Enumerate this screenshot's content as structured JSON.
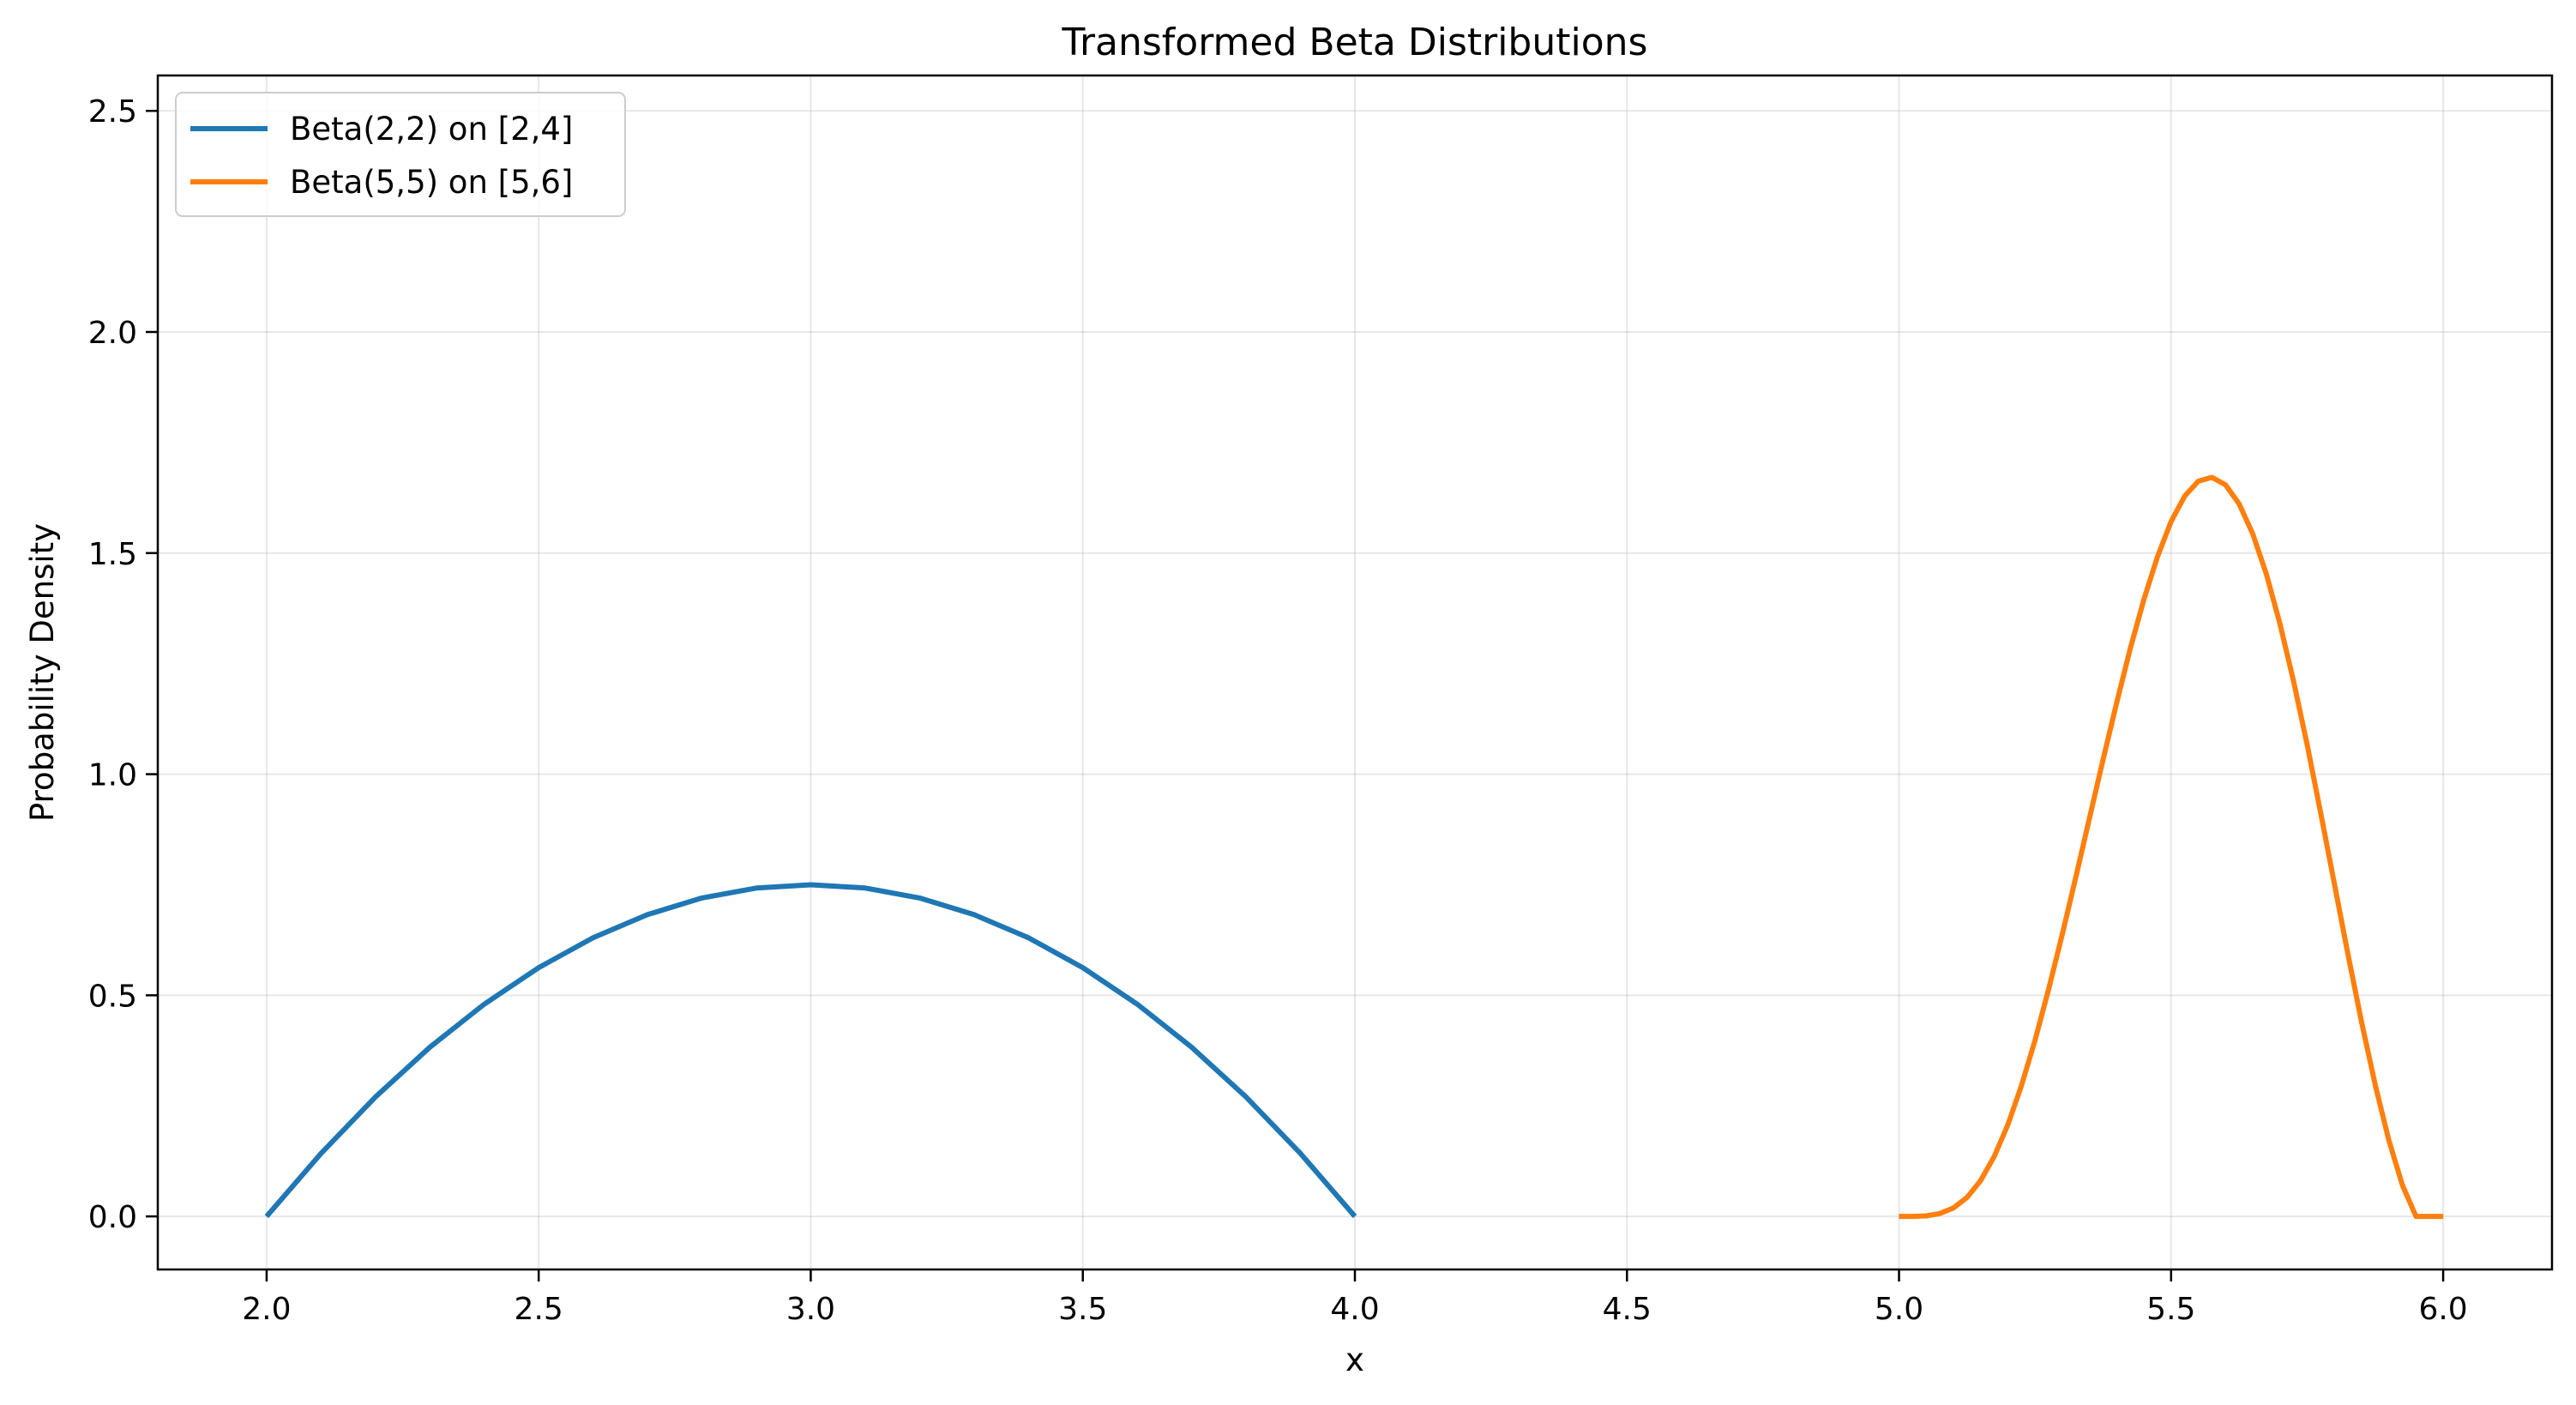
{
  "chart_data": {
    "type": "line",
    "title": "Transformed Beta Distributions",
    "xlabel": "x",
    "ylabel": "Probability Density",
    "xlim": [
      1.8,
      6.2
    ],
    "ylim": [
      -0.12,
      2.58
    ],
    "xticks": [
      2.0,
      2.5,
      3.0,
      3.5,
      4.0,
      4.5,
      5.0,
      5.5,
      6.0
    ],
    "xtick_labels": [
      "2.0",
      "2.5",
      "3.0",
      "3.5",
      "4.0",
      "4.5",
      "5.0",
      "5.5",
      "6.0"
    ],
    "yticks": [
      0.0,
      0.5,
      1.0,
      1.5,
      2.0,
      2.5
    ],
    "ytick_labels": [
      "0.0",
      "0.5",
      "1.0",
      "1.5",
      "2.0",
      "2.5"
    ],
    "grid": true,
    "legend_position": "top-left",
    "series": [
      {
        "name": "Beta(2,2) on [2,4]",
        "color": "#1f77b4",
        "x": [
          2.0,
          2.1,
          2.2,
          2.3,
          2.4,
          2.5,
          2.6,
          2.7,
          2.8,
          2.9,
          3.0,
          3.1,
          3.2,
          3.3,
          3.4,
          3.5,
          3.6,
          3.7,
          3.8,
          3.9,
          4.0
        ],
        "y": [
          0.0,
          0.1425,
          0.27,
          0.3825,
          0.48,
          0.5625,
          0.63,
          0.6825,
          0.72,
          0.7425,
          0.75,
          0.7425,
          0.72,
          0.6825,
          0.63,
          0.5625,
          0.48,
          0.3825,
          0.27,
          0.1425,
          0.0
        ]
      },
      {
        "name": "Beta(5,5) on [5,6]",
        "color": "#ff7f0e",
        "x": [
          5.0,
          5.025,
          5.05,
          5.075,
          5.1,
          5.125,
          5.15,
          5.175,
          5.2,
          5.225,
          5.25,
          5.275,
          5.3,
          5.325,
          5.35,
          5.375,
          5.4,
          5.425,
          5.45,
          5.475,
          5.5,
          5.525,
          5.55,
          5.575,
          5.6,
          5.625,
          5.65,
          5.675,
          5.7,
          5.725,
          5.75,
          5.775,
          5.8,
          5.825,
          5.85,
          5.875,
          5.9,
          5.925,
          5.95,
          5.975,
          6.0
        ],
        "y": [
          0.0,
          0.0001,
          0.0013,
          0.0065,
          0.0191,
          0.0429,
          0.0809,
          0.1356,
          0.2074,
          0.2956,
          0.3985,
          0.5136,
          0.6377,
          0.7677,
          0.9005,
          1.033,
          1.162,
          1.284,
          1.395,
          1.492,
          1.5711,
          1.6287,
          1.6626,
          1.6713,
          1.6542,
          1.6114,
          1.5437,
          1.4526,
          1.3406,
          1.2106,
          1.0664,
          0.9121,
          0.7526,
          0.5934,
          0.4399,
          0.298,
          0.1732,
          0.0711,
          0.0,
          0.0,
          0.0
        ]
      }
    ]
  }
}
